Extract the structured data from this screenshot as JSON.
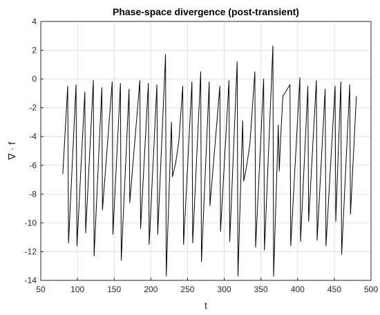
{
  "chart_data": {
    "type": "line",
    "title": "Phase-space divergence (post-transient)",
    "xlabel": "t",
    "ylabel": "∇ · f",
    "xlim": [
      50,
      500
    ],
    "ylim": [
      -14,
      4
    ],
    "xticks": [
      50,
      100,
      150,
      200,
      250,
      300,
      350,
      400,
      450,
      500
    ],
    "yticks": [
      -14,
      -12,
      -10,
      -8,
      -6,
      -4,
      -2,
      0,
      2,
      4
    ],
    "grid": true,
    "series": [
      {
        "color": "#000000",
        "points": [
          [
            80,
            -6.6
          ],
          [
            86.7,
            -0.5
          ],
          [
            87.8,
            -11.4
          ],
          [
            98,
            -0.4
          ],
          [
            99.3,
            -11.6
          ],
          [
            110.1,
            -0.9
          ],
          [
            111.2,
            -10.7
          ],
          [
            121.6,
            -0.1
          ],
          [
            122.7,
            -12.3
          ],
          [
            133.2,
            -0.6
          ],
          [
            134.1,
            -9.1
          ],
          [
            147.3,
            -0.2
          ],
          [
            148.3,
            -10.8
          ],
          [
            158.5,
            -0.3
          ],
          [
            159.7,
            -12.6
          ],
          [
            170.3,
            -0.7
          ],
          [
            171.3,
            -8.6
          ],
          [
            185,
            -0.1
          ],
          [
            186,
            -10.4
          ],
          [
            196.6,
            -0.3
          ],
          [
            197.7,
            -11.5
          ],
          [
            208.3,
            -0.4
          ],
          [
            209.4,
            -10.8
          ],
          [
            220,
            1.7
          ],
          [
            221,
            -13.7
          ],
          [
            228,
            -3.0
          ],
          [
            229.5,
            -6.8
          ],
          [
            234,
            -5.8
          ],
          [
            238,
            -4.4
          ],
          [
            243.5,
            -0.5
          ],
          [
            244.6,
            -11.5
          ],
          [
            256,
            -0.2
          ],
          [
            257,
            -11.4
          ],
          [
            267.9,
            0.5
          ],
          [
            269,
            -12.7
          ],
          [
            279.5,
            -0.2
          ],
          [
            280.6,
            -8.8
          ],
          [
            294,
            -0.5
          ],
          [
            295,
            -10.6
          ],
          [
            306.4,
            -0.1
          ],
          [
            307.5,
            -11.3
          ],
          [
            317.6,
            1.2
          ],
          [
            318.7,
            -13.7
          ],
          [
            325.1,
            -2.9
          ],
          [
            326.6,
            -7.1
          ],
          [
            331,
            -5.9
          ],
          [
            335,
            -4.5
          ],
          [
            341.7,
            0.5
          ],
          [
            342.8,
            -11.7
          ],
          [
            353.7,
            0.0
          ],
          [
            354.8,
            -11.9
          ],
          [
            366.3,
            2.3
          ],
          [
            367.3,
            -13.7
          ],
          [
            373.7,
            -3.2
          ],
          [
            375,
            -6.4
          ],
          [
            376.9,
            -4.1
          ],
          [
            379.9,
            -1.2
          ],
          [
            389.6,
            -0.4
          ],
          [
            390.6,
            -11.6
          ],
          [
            403,
            0.1
          ],
          [
            404,
            -11.3
          ],
          [
            414,
            -0.5
          ],
          [
            415,
            -9.9
          ],
          [
            425.5,
            -0.1
          ],
          [
            426.6,
            -11.2
          ],
          [
            437.5,
            -0.7
          ],
          [
            438.6,
            -11.6
          ],
          [
            451,
            -0.5
          ],
          [
            452,
            -9.9
          ],
          [
            458.9,
            -0.2
          ],
          [
            460,
            -12.2
          ],
          [
            471,
            -0.4
          ],
          [
            472,
            -9.4
          ],
          [
            480,
            -1.2
          ]
        ]
      }
    ]
  }
}
